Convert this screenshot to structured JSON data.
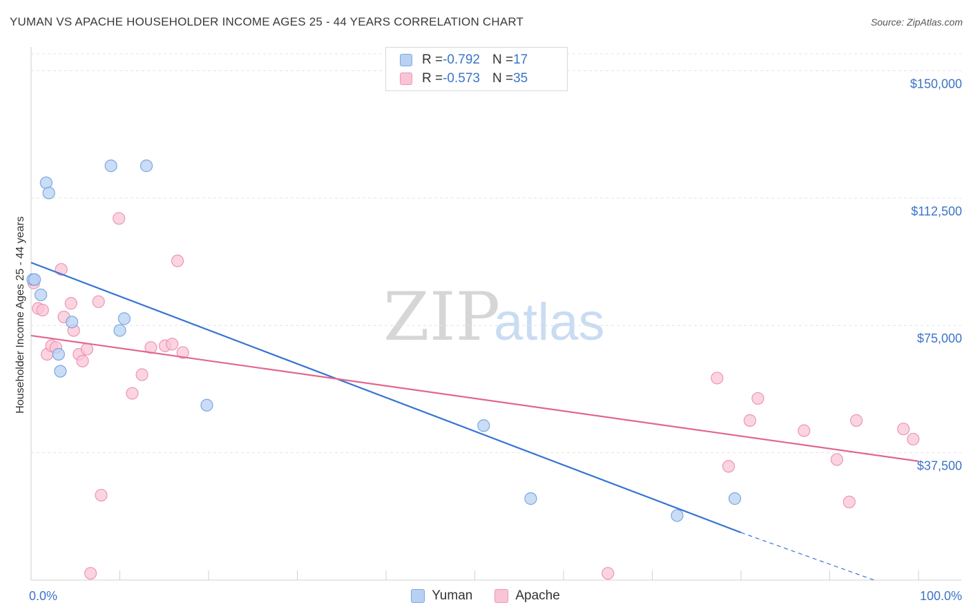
{
  "title": "YUMAN VS APACHE HOUSEHOLDER INCOME AGES 25 - 44 YEARS CORRELATION CHART",
  "source": "Source: ZipAtlas.com",
  "watermark": {
    "zip": "ZIP",
    "atlas": "atlas"
  },
  "legend": {
    "rows": [
      {
        "r_label": "R = ",
        "r_value": "-0.792",
        "n_label": "N = ",
        "n_value": "17"
      },
      {
        "r_label": "R = ",
        "r_value": "-0.573",
        "n_label": "N = ",
        "n_value": "35"
      }
    ]
  },
  "colors": {
    "yuman_fill": "#b8d1f3",
    "yuman_stroke": "#7aa6e0",
    "yuman_line": "#3474d4",
    "apache_fill": "#f9c5d5",
    "apache_stroke": "#ec95b2",
    "apache_line": "#e0668f",
    "tick_label": "#3b73c8",
    "grid": "#e3e3e3"
  },
  "chart_data": {
    "type": "scatter",
    "title": "YUMAN VS APACHE HOUSEHOLDER INCOME AGES 25 - 44 YEARS CORRELATION CHART",
    "xlabel": "",
    "ylabel": "Householder Income Ages 25 - 44 years",
    "xlim": [
      0,
      100
    ],
    "ylim": [
      0,
      157000
    ],
    "x_tick_labels": [
      "0.0%",
      "100.0%"
    ],
    "y_ticks": [
      37500,
      75000,
      112500,
      150000
    ],
    "y_tick_labels": [
      "$37,500",
      "$75,000",
      "$112,500",
      "$150,000"
    ],
    "grid": true,
    "legend_position": "top-center",
    "series": [
      {
        "name": "Yuman",
        "points": [
          [
            0.2,
            88500
          ],
          [
            1.1,
            84000
          ],
          [
            1.7,
            117000
          ],
          [
            2.0,
            114000
          ],
          [
            3.1,
            66500
          ],
          [
            3.3,
            61500
          ],
          [
            4.6,
            76000
          ],
          [
            9.0,
            122000
          ],
          [
            10.0,
            73500
          ],
          [
            10.5,
            77000
          ],
          [
            13.0,
            122000
          ],
          [
            19.8,
            51500
          ],
          [
            51.0,
            45500
          ],
          [
            56.3,
            24000
          ],
          [
            72.8,
            19000
          ],
          [
            79.3,
            24000
          ],
          [
            0.4,
            88500
          ]
        ],
        "trend": {
          "x1": 0,
          "y1": 93500,
          "x2": 80,
          "y2": 14000,
          "dash_to_x": 95,
          "dash_to_y": 0
        }
      },
      {
        "name": "Apache",
        "points": [
          [
            0.3,
            87500
          ],
          [
            0.8,
            80000
          ],
          [
            1.3,
            79500
          ],
          [
            1.8,
            66500
          ],
          [
            2.3,
            69000
          ],
          [
            2.8,
            68500
          ],
          [
            3.4,
            91500
          ],
          [
            3.7,
            77500
          ],
          [
            4.5,
            81500
          ],
          [
            4.8,
            73500
          ],
          [
            5.4,
            66500
          ],
          [
            5.8,
            64500
          ],
          [
            6.3,
            68000
          ],
          [
            7.6,
            82000
          ],
          [
            7.9,
            25000
          ],
          [
            6.7,
            2000
          ],
          [
            9.9,
            106500
          ],
          [
            11.4,
            55000
          ],
          [
            12.5,
            60500
          ],
          [
            13.5,
            68500
          ],
          [
            15.1,
            69000
          ],
          [
            15.9,
            69500
          ],
          [
            16.5,
            94000
          ],
          [
            17.1,
            67000
          ],
          [
            65.0,
            2000
          ],
          [
            77.3,
            59500
          ],
          [
            78.6,
            33500
          ],
          [
            81.0,
            47000
          ],
          [
            81.9,
            53500
          ],
          [
            87.1,
            44000
          ],
          [
            90.8,
            35500
          ],
          [
            92.2,
            23000
          ],
          [
            93.0,
            47000
          ],
          [
            98.3,
            44500
          ],
          [
            99.4,
            41500
          ]
        ],
        "trend": {
          "x1": 0,
          "y1": 72000,
          "x2": 100,
          "y2": 35000
        }
      }
    ]
  }
}
